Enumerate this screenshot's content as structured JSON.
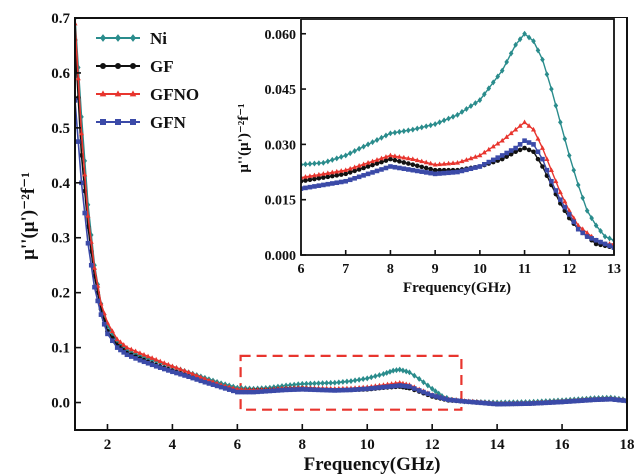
{
  "chart_data": [
    {
      "type": "line",
      "xlabel": "Frequency(GHz)",
      "ylabel": "μ''(μ')⁻²f⁻¹",
      "xlim": [
        1,
        18
      ],
      "ylim": [
        -0.05,
        0.7
      ],
      "xticks": [
        "2",
        "4",
        "6",
        "8",
        "10",
        "12",
        "14",
        "16",
        "18"
      ],
      "yticks": [
        "0.0",
        "0.1",
        "0.2",
        "0.3",
        "0.4",
        "0.5",
        "0.6",
        "0.7"
      ],
      "legend": {
        "placement": "top-left"
      },
      "annotations": [
        {
          "type": "dashed-rectangle",
          "color": "#e8352e",
          "x": [
            6.1,
            12.9
          ],
          "y": [
            -0.013,
            0.085
          ]
        }
      ],
      "series": [
        {
          "name": "Ni",
          "color": "#2a8c8c",
          "marker": "diamond",
          "points": [
            [
              1,
              0.7
            ],
            [
              1.2,
              0.52
            ],
            [
              1.4,
              0.36
            ],
            [
              1.6,
              0.25
            ],
            [
              1.8,
              0.18
            ],
            [
              2.0,
              0.14
            ],
            [
              2.3,
              0.11
            ],
            [
              2.6,
              0.095
            ],
            [
              3.0,
              0.085
            ],
            [
              3.5,
              0.075
            ],
            [
              4.0,
              0.065
            ],
            [
              4.5,
              0.055
            ],
            [
              5.0,
              0.045
            ],
            [
              5.5,
              0.035
            ],
            [
              6.0,
              0.027
            ],
            [
              6.5,
              0.025
            ],
            [
              7.0,
              0.027
            ],
            [
              7.5,
              0.031
            ],
            [
              8.0,
              0.034
            ],
            [
              8.5,
              0.035
            ],
            [
              9.0,
              0.036
            ],
            [
              9.5,
              0.039
            ],
            [
              10.0,
              0.044
            ],
            [
              10.5,
              0.052
            ],
            [
              10.8,
              0.058
            ],
            [
              11.0,
              0.06
            ],
            [
              11.3,
              0.055
            ],
            [
              11.6,
              0.043
            ],
            [
              12.0,
              0.025
            ],
            [
              12.3,
              0.012
            ],
            [
              12.6,
              0.005
            ],
            [
              13.0,
              0.002
            ],
            [
              14.0,
              0.0
            ],
            [
              15.0,
              0.001
            ],
            [
              16.0,
              0.004
            ],
            [
              17.0,
              0.008
            ],
            [
              17.5,
              0.009
            ],
            [
              18.0,
              0.005
            ]
          ]
        },
        {
          "name": "GF",
          "color": "#111111",
          "marker": "circle",
          "points": [
            [
              1,
              0.66
            ],
            [
              1.2,
              0.45
            ],
            [
              1.4,
              0.32
            ],
            [
              1.6,
              0.23
            ],
            [
              1.8,
              0.17
            ],
            [
              2.0,
              0.13
            ],
            [
              2.3,
              0.105
            ],
            [
              2.6,
              0.09
            ],
            [
              3.0,
              0.08
            ],
            [
              3.5,
              0.068
            ],
            [
              4.0,
              0.058
            ],
            [
              4.5,
              0.048
            ],
            [
              5.0,
              0.038
            ],
            [
              5.5,
              0.029
            ],
            [
              6.0,
              0.022
            ],
            [
              6.5,
              0.022
            ],
            [
              7.0,
              0.023
            ],
            [
              7.5,
              0.025
            ],
            [
              8.0,
              0.026
            ],
            [
              8.5,
              0.024
            ],
            [
              9.0,
              0.023
            ],
            [
              9.5,
              0.023
            ],
            [
              10.0,
              0.024
            ],
            [
              10.5,
              0.027
            ],
            [
              11.0,
              0.029
            ],
            [
              11.3,
              0.026
            ],
            [
              11.6,
              0.02
            ],
            [
              12.0,
              0.011
            ],
            [
              12.5,
              0.004
            ],
            [
              13.0,
              0.002
            ],
            [
              14.0,
              -0.003
            ],
            [
              15.0,
              -0.002
            ],
            [
              16.0,
              0.001
            ],
            [
              17.0,
              0.005
            ],
            [
              17.5,
              0.006
            ],
            [
              18.0,
              0.003
            ]
          ]
        },
        {
          "name": "GFNO",
          "color": "#e8352e",
          "marker": "triangle",
          "points": [
            [
              1,
              0.69
            ],
            [
              1.2,
              0.49
            ],
            [
              1.4,
              0.34
            ],
            [
              1.6,
              0.245
            ],
            [
              1.8,
              0.18
            ],
            [
              2.0,
              0.145
            ],
            [
              2.3,
              0.115
            ],
            [
              2.6,
              0.1
            ],
            [
              3.0,
              0.09
            ],
            [
              3.5,
              0.078
            ],
            [
              4.0,
              0.066
            ],
            [
              4.5,
              0.055
            ],
            [
              5.0,
              0.043
            ],
            [
              5.5,
              0.032
            ],
            [
              6.0,
              0.024
            ],
            [
              6.5,
              0.023
            ],
            [
              7.0,
              0.024
            ],
            [
              7.5,
              0.026
            ],
            [
              8.0,
              0.027
            ],
            [
              8.5,
              0.026
            ],
            [
              9.0,
              0.025
            ],
            [
              9.5,
              0.026
            ],
            [
              10.0,
              0.028
            ],
            [
              10.5,
              0.032
            ],
            [
              11.0,
              0.036
            ],
            [
              11.3,
              0.032
            ],
            [
              11.6,
              0.024
            ],
            [
              12.0,
              0.014
            ],
            [
              12.5,
              0.006
            ],
            [
              13.0,
              0.003
            ],
            [
              14.0,
              -0.002
            ],
            [
              15.0,
              -0.001
            ],
            [
              16.0,
              0.002
            ],
            [
              17.0,
              0.006
            ],
            [
              17.5,
              0.007
            ],
            [
              18.0,
              0.004
            ]
          ]
        },
        {
          "name": "GFN",
          "color": "#3b4aa8",
          "marker": "square",
          "points": [
            [
              1,
              0.55
            ],
            [
              1.2,
              0.4
            ],
            [
              1.4,
              0.29
            ],
            [
              1.6,
              0.21
            ],
            [
              1.8,
              0.16
            ],
            [
              2.0,
              0.125
            ],
            [
              2.3,
              0.1
            ],
            [
              2.6,
              0.087
            ],
            [
              3.0,
              0.077
            ],
            [
              3.5,
              0.066
            ],
            [
              4.0,
              0.056
            ],
            [
              4.5,
              0.047
            ],
            [
              5.0,
              0.037
            ],
            [
              5.5,
              0.028
            ],
            [
              6.0,
              0.019
            ],
            [
              6.5,
              0.019
            ],
            [
              7.0,
              0.021
            ],
            [
              7.5,
              0.023
            ],
            [
              8.0,
              0.024
            ],
            [
              8.5,
              0.023
            ],
            [
              9.0,
              0.022
            ],
            [
              9.5,
              0.023
            ],
            [
              10.0,
              0.025
            ],
            [
              10.5,
              0.028
            ],
            [
              11.0,
              0.031
            ],
            [
              11.3,
              0.029
            ],
            [
              11.6,
              0.022
            ],
            [
              12.0,
              0.013
            ],
            [
              12.5,
              0.005
            ],
            [
              13.0,
              0.002
            ],
            [
              14.0,
              -0.003
            ],
            [
              15.0,
              -0.002
            ],
            [
              16.0,
              0.001
            ],
            [
              17.0,
              0.005
            ],
            [
              17.5,
              0.006
            ],
            [
              18.0,
              0.003
            ]
          ]
        }
      ]
    },
    {
      "type": "line",
      "role": "inset",
      "xlabel": "Frequency(GHz)",
      "ylabel": "μ''(μ')⁻²f⁻¹",
      "xlim": [
        6,
        13
      ],
      "ylim": [
        0.0,
        0.064
      ],
      "xticks": [
        "6",
        "7",
        "8",
        "9",
        "10",
        "11",
        "12",
        "13"
      ],
      "yticks": [
        "0.000",
        "0.015",
        "0.030",
        "0.045",
        "0.060"
      ],
      "series": [
        {
          "name": "Ni",
          "color": "#2a8c8c",
          "marker": "diamond",
          "points": [
            [
              6.0,
              0.0245
            ],
            [
              6.5,
              0.025
            ],
            [
              7.0,
              0.027
            ],
            [
              7.5,
              0.03
            ],
            [
              8.0,
              0.033
            ],
            [
              8.5,
              0.034
            ],
            [
              9.0,
              0.0355
            ],
            [
              9.5,
              0.038
            ],
            [
              10.0,
              0.042
            ],
            [
              10.5,
              0.05
            ],
            [
              10.8,
              0.057
            ],
            [
              11.0,
              0.06
            ],
            [
              11.2,
              0.058
            ],
            [
              11.4,
              0.053
            ],
            [
              11.6,
              0.045
            ],
            [
              11.8,
              0.036
            ],
            [
              12.0,
              0.027
            ],
            [
              12.2,
              0.019
            ],
            [
              12.4,
              0.012
            ],
            [
              12.6,
              0.008
            ],
            [
              12.8,
              0.005
            ],
            [
              13.0,
              0.004
            ]
          ]
        },
        {
          "name": "GF",
          "color": "#111111",
          "marker": "circle",
          "points": [
            [
              6.0,
              0.02
            ],
            [
              6.5,
              0.021
            ],
            [
              7.0,
              0.022
            ],
            [
              7.5,
              0.024
            ],
            [
              8.0,
              0.026
            ],
            [
              8.5,
              0.0245
            ],
            [
              9.0,
              0.023
            ],
            [
              9.5,
              0.023
            ],
            [
              10.0,
              0.024
            ],
            [
              10.5,
              0.026
            ],
            [
              10.8,
              0.028
            ],
            [
              11.0,
              0.029
            ],
            [
              11.2,
              0.028
            ],
            [
              11.4,
              0.024
            ],
            [
              11.6,
              0.019
            ],
            [
              11.8,
              0.014
            ],
            [
              12.0,
              0.01
            ],
            [
              12.2,
              0.007
            ],
            [
              12.4,
              0.005
            ],
            [
              12.6,
              0.003
            ],
            [
              12.8,
              0.0025
            ],
            [
              13.0,
              0.002
            ]
          ]
        },
        {
          "name": "GFNO",
          "color": "#e8352e",
          "marker": "triangle",
          "points": [
            [
              6.0,
              0.021
            ],
            [
              6.5,
              0.022
            ],
            [
              7.0,
              0.023
            ],
            [
              7.5,
              0.025
            ],
            [
              8.0,
              0.027
            ],
            [
              8.5,
              0.026
            ],
            [
              9.0,
              0.0245
            ],
            [
              9.5,
              0.025
            ],
            [
              10.0,
              0.027
            ],
            [
              10.5,
              0.031
            ],
            [
              10.8,
              0.034
            ],
            [
              11.0,
              0.036
            ],
            [
              11.2,
              0.034
            ],
            [
              11.4,
              0.029
            ],
            [
              11.6,
              0.023
            ],
            [
              11.8,
              0.017
            ],
            [
              12.0,
              0.012
            ],
            [
              12.2,
              0.008
            ],
            [
              12.4,
              0.006
            ],
            [
              12.6,
              0.004
            ],
            [
              12.8,
              0.003
            ],
            [
              13.0,
              0.003
            ]
          ]
        },
        {
          "name": "GFN",
          "color": "#3b4aa8",
          "marker": "square",
          "points": [
            [
              6.0,
              0.018
            ],
            [
              6.5,
              0.019
            ],
            [
              7.0,
              0.02
            ],
            [
              7.5,
              0.022
            ],
            [
              8.0,
              0.024
            ],
            [
              8.5,
              0.023
            ],
            [
              9.0,
              0.022
            ],
            [
              9.5,
              0.0225
            ],
            [
              10.0,
              0.024
            ],
            [
              10.5,
              0.027
            ],
            [
              10.8,
              0.029
            ],
            [
              11.0,
              0.031
            ],
            [
              11.2,
              0.03
            ],
            [
              11.4,
              0.026
            ],
            [
              11.6,
              0.02
            ],
            [
              11.8,
              0.015
            ],
            [
              12.0,
              0.011
            ],
            [
              12.2,
              0.007
            ],
            [
              12.4,
              0.005
            ],
            [
              12.6,
              0.004
            ],
            [
              12.8,
              0.003
            ],
            [
              13.0,
              0.002
            ]
          ]
        }
      ]
    }
  ]
}
